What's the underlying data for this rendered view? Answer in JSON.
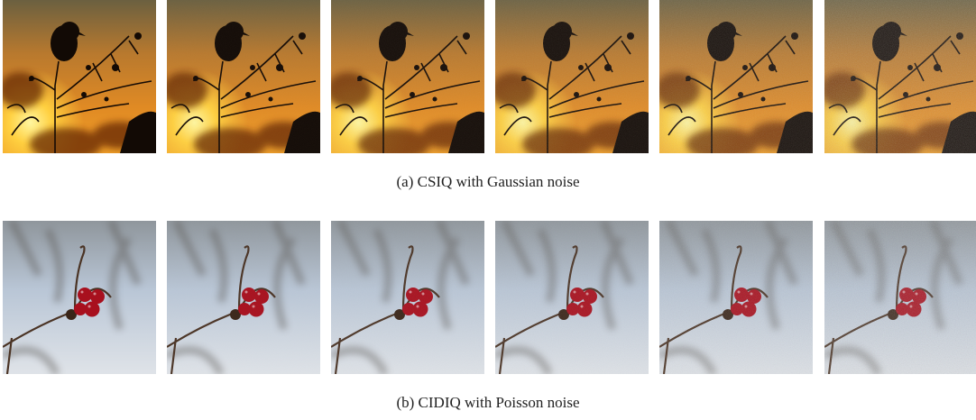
{
  "figure": {
    "subfigures": [
      {
        "caption": "(a) CSIQ with Gaussian noise"
      },
      {
        "caption": "(b) CIDIQ with Poisson noise"
      }
    ]
  }
}
